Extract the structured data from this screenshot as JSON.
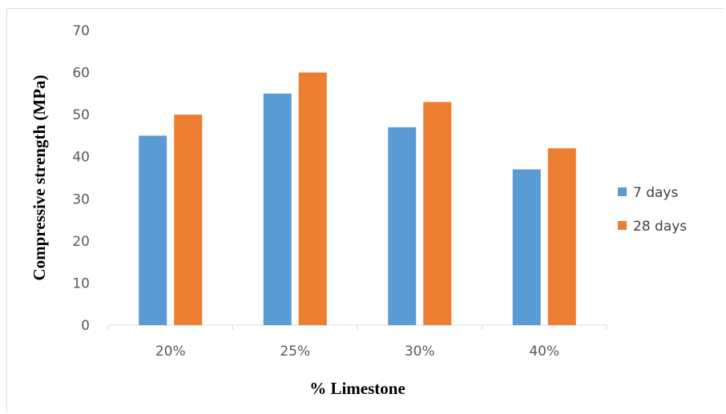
{
  "chart_data": {
    "type": "bar",
    "categories": [
      "20%",
      "25%",
      "30%",
      "40%"
    ],
    "series": [
      {
        "name": "7 days",
        "values": [
          45,
          55,
          47,
          37
        ],
        "color": "#5b9bd5"
      },
      {
        "name": "28 days",
        "values": [
          50,
          60,
          53,
          42
        ],
        "color": "#ed7d31"
      }
    ],
    "title": "",
    "xlabel": "% Limestone",
    "ylabel": "Compressive strength (MPa)",
    "ylim": [
      0,
      70
    ],
    "yticks": [
      0,
      10,
      20,
      30,
      40,
      50,
      60,
      70
    ],
    "grid": false,
    "legend_position": "right"
  }
}
